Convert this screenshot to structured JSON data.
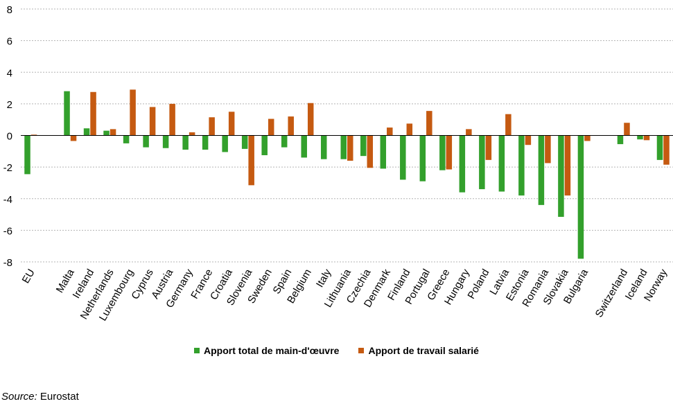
{
  "chart_data": {
    "type": "bar",
    "categories": [
      "EU",
      "",
      "Malta",
      "Ireland",
      "Netherlands",
      "Luxembourg",
      "Cyprus",
      "Austria",
      "Germany",
      "France",
      "Croatia",
      "Slovenia",
      "Sweden",
      "Spain",
      "Belgium",
      "Italy",
      "Lithuania",
      "Czechia",
      "Denmark",
      "Finland",
      "Portugal",
      "Greece",
      "Hungary",
      "Poland",
      "Latvia",
      "Estonia",
      "Romania",
      "Slovakia",
      "Bulgaria",
      "",
      "Switzerland",
      "Iceland",
      "Norway"
    ],
    "series": [
      {
        "name": "Apport total de main-d'œuvre",
        "color": "#33a02c",
        "values": [
          -2.45,
          null,
          2.8,
          0.45,
          0.3,
          -0.5,
          -0.75,
          -0.8,
          -0.9,
          -0.9,
          -1.05,
          -0.85,
          -1.25,
          -0.75,
          -1.4,
          -1.5,
          -1.5,
          -1.3,
          -2.1,
          -2.8,
          -2.9,
          -2.2,
          -3.6,
          -3.4,
          -3.55,
          -3.8,
          -4.4,
          -5.15,
          -7.8,
          null,
          -0.55,
          -0.25,
          -1.55
        ]
      },
      {
        "name": "Apport de travail salarié",
        "color": "#c55a11",
        "values": [
          0.05,
          null,
          -0.35,
          2.75,
          0.4,
          2.9,
          1.8,
          2.0,
          0.2,
          1.15,
          1.5,
          -3.15,
          1.05,
          1.2,
          2.05,
          null,
          -1.6,
          -2.05,
          0.5,
          0.75,
          1.55,
          -2.15,
          0.4,
          -1.55,
          1.35,
          -0.6,
          -1.75,
          -3.8,
          -0.35,
          null,
          0.8,
          -0.3,
          -1.85
        ]
      }
    ],
    "ylim": [
      -8,
      8
    ],
    "yticks": [
      -8,
      -6,
      -4,
      -2,
      0,
      2,
      4,
      6,
      8
    ],
    "grid": true,
    "legend_position": "bottom"
  },
  "source": {
    "label": "Source:",
    "text": " Eurostat"
  }
}
